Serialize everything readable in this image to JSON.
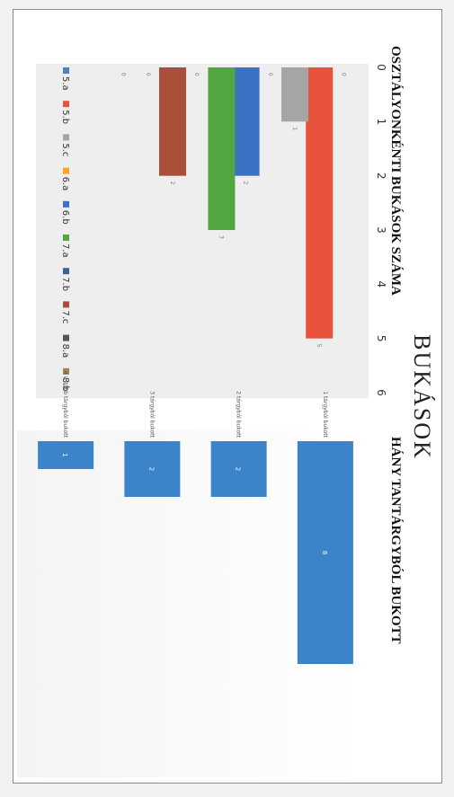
{
  "title": "BUKÁSOK",
  "chart_data": [
    {
      "type": "bar",
      "title": "OSZTÁLYONKÉNTI BUKÁSOK SZÁMA",
      "categories": [
        "5.a",
        "5.b",
        "5.c",
        "6.a",
        "6.b",
        "7.a",
        "7.b",
        "7.c",
        "8.a",
        "8.b"
      ],
      "values": [
        0,
        5,
        1,
        0,
        2,
        3,
        0,
        2,
        0,
        0
      ],
      "ylim": [
        0,
        6
      ],
      "yticks": [
        0,
        1,
        2,
        3,
        4,
        5,
        6
      ],
      "colors": [
        "#4f81bd",
        "#e8533b",
        "#a5a5a5",
        "#f5a623",
        "#3b73c4",
        "#54a641",
        "#3d5f96",
        "#a94f3a",
        "#555555",
        "#a3825c"
      ],
      "legend": "bottom",
      "grid": false
    },
    {
      "type": "bar",
      "title": "HÁNY TANTÁRGYBÓL BUKOTT",
      "categories": [
        "1 tárgyból bukott",
        "2 tárgyból bukott",
        "3 tárgyból bukott",
        "4 v. több tárgyból bukott"
      ],
      "values": [
        8,
        2,
        2,
        1
      ],
      "colors": [
        "#3b84c9"
      ],
      "grid": false
    }
  ]
}
